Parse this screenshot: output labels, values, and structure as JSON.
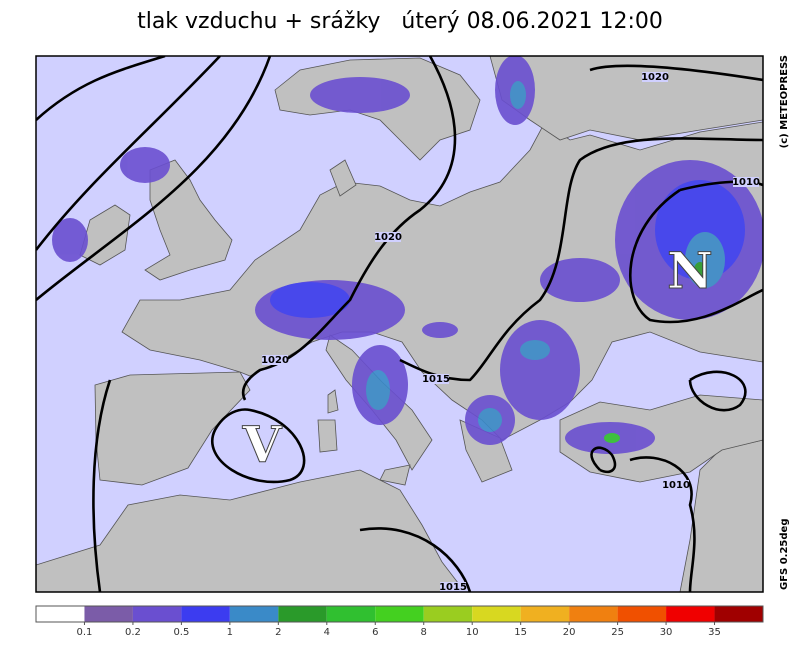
{
  "header": {
    "title": "tlak vzduchu + srážky   úterý 08.06.2021 12:00"
  },
  "copyright": "(c) METEOPRESS",
  "model": "GFS 0.25deg",
  "pressure_centers": [
    {
      "label": "N"
    },
    {
      "label": "V"
    }
  ],
  "isobar_labels": [
    1020,
    1020,
    1020,
    1015,
    1015,
    1010,
    1010
  ],
  "colorbar": {
    "colors": [
      "#ffffff",
      "#7b5ca8",
      "#6a4fd0",
      "#3c3cf0",
      "#3a8ac8",
      "#2a9a2a",
      "#30c030",
      "#44d020",
      "#9acd20",
      "#d8d820",
      "#f0b020",
      "#f08010",
      "#f05000",
      "#f00000",
      "#a00000"
    ],
    "labels": [
      "0.1",
      "0.2",
      "0.5",
      "1",
      "2",
      "4",
      "6",
      "8",
      "10",
      "15",
      "20",
      "25",
      "30",
      "35"
    ]
  }
}
